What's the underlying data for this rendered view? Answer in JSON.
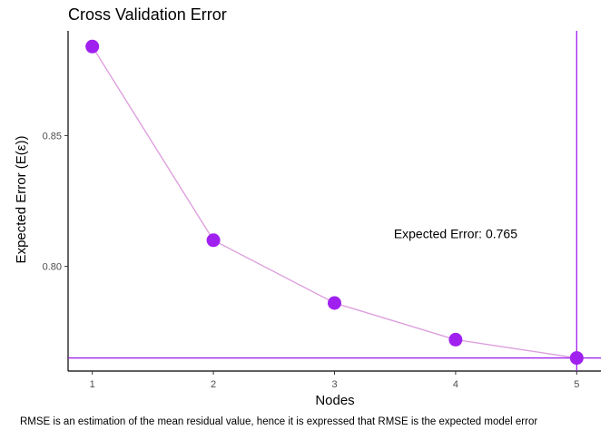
{
  "chart_data": {
    "type": "line",
    "title": "Cross Validation Error",
    "xlabel": "Nodes",
    "ylabel": "Expected Error (E(ε))",
    "caption": "RMSE is an estimation of the mean residual value, hence it is expressed that RMSE is the expected model error",
    "x": [
      1,
      2,
      3,
      4,
      5
    ],
    "series": [
      {
        "values": [
          0.884,
          0.81,
          0.786,
          0.772,
          0.765
        ]
      }
    ],
    "xticks": [
      "1",
      "2",
      "3",
      "4",
      "5"
    ],
    "yticks": [
      "0.80",
      "0.85"
    ],
    "ytick_values": [
      0.8,
      0.85
    ],
    "xlim": [
      0.8,
      5.2
    ],
    "ylim": [
      0.76,
      0.89
    ],
    "grid": false,
    "reference_lines": {
      "vertical_x": 5,
      "horizontal_y": 0.765
    },
    "annotation": {
      "text": "Expected Error:  0.765",
      "x": 4.0,
      "y": 0.8125
    },
    "colors": {
      "points": "#A020F0",
      "line": "#DDA0DD",
      "reference": "#A020F0",
      "axis": "#000000"
    }
  }
}
